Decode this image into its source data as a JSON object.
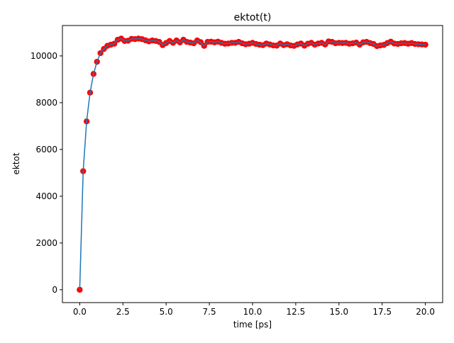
{
  "chart_data": {
    "type": "line",
    "title": "ektot(t)",
    "xlabel": "time [ps]",
    "ylabel": "ektot",
    "xlim": [
      -1.0,
      21.0
    ],
    "ylim": [
      -550,
      11300
    ],
    "xticks": [
      0.0,
      2.5,
      5.0,
      7.5,
      10.0,
      12.5,
      15.0,
      17.5,
      20.0
    ],
    "xtick_labels": [
      "0.0",
      "2.5",
      "5.0",
      "7.5",
      "10.0",
      "12.5",
      "15.0",
      "17.5",
      "20.0"
    ],
    "yticks": [
      0,
      2000,
      4000,
      6000,
      8000,
      10000
    ],
    "ytick_labels": [
      "0",
      "2000",
      "4000",
      "6000",
      "8000",
      "10000"
    ],
    "grid": false,
    "legend": "none",
    "series": [
      {
        "style": "line + scatter markers",
        "line_color": "#1f77b4",
        "marker_color": "#ff0000",
        "x": [
          0.0,
          0.2,
          0.4,
          0.6,
          0.8,
          1.0,
          1.2,
          1.4,
          1.6,
          1.8,
          2.0,
          2.2,
          2.4,
          2.6,
          2.8,
          3.0,
          3.2,
          3.4,
          3.6,
          3.8,
          4.0,
          4.2,
          4.4,
          4.6,
          4.8,
          5.0,
          5.2,
          5.4,
          5.6,
          5.8,
          6.0,
          6.2,
          6.4,
          6.6,
          6.8,
          7.0,
          7.2,
          7.4,
          7.6,
          7.8,
          8.0,
          8.2,
          8.4,
          8.6,
          8.8,
          9.0,
          9.2,
          9.4,
          9.6,
          9.8,
          10.0,
          10.2,
          10.4,
          10.6,
          10.8,
          11.0,
          11.2,
          11.4,
          11.6,
          11.8,
          12.0,
          12.2,
          12.4,
          12.6,
          12.8,
          13.0,
          13.2,
          13.4,
          13.6,
          13.8,
          14.0,
          14.2,
          14.4,
          14.6,
          14.8,
          15.0,
          15.2,
          15.4,
          15.6,
          15.8,
          16.0,
          16.2,
          16.4,
          16.6,
          16.8,
          17.0,
          17.2,
          17.4,
          17.6,
          17.8,
          18.0,
          18.2,
          18.4,
          18.6,
          18.8,
          19.0,
          19.2,
          19.4,
          19.6,
          19.8,
          20.0
        ],
        "y": [
          0,
          5070,
          7200,
          8430,
          9230,
          9750,
          10120,
          10300,
          10430,
          10480,
          10520,
          10690,
          10740,
          10640,
          10650,
          10730,
          10720,
          10740,
          10720,
          10670,
          10620,
          10660,
          10640,
          10600,
          10460,
          10550,
          10640,
          10560,
          10660,
          10580,
          10690,
          10600,
          10570,
          10540,
          10660,
          10590,
          10430,
          10600,
          10610,
          10580,
          10610,
          10560,
          10520,
          10530,
          10560,
          10560,
          10600,
          10540,
          10500,
          10520,
          10560,
          10510,
          10480,
          10460,
          10530,
          10490,
          10450,
          10440,
          10530,
          10460,
          10500,
          10450,
          10430,
          10490,
          10530,
          10440,
          10520,
          10560,
          10480,
          10530,
          10560,
          10490,
          10620,
          10600,
          10540,
          10560,
          10550,
          10560,
          10520,
          10540,
          10570,
          10480,
          10580,
          10600,
          10550,
          10510,
          10420,
          10450,
          10470,
          10550,
          10610,
          10530,
          10510,
          10540,
          10550,
          10520,
          10550,
          10510,
          10500,
          10490,
          10480
        ]
      }
    ]
  }
}
